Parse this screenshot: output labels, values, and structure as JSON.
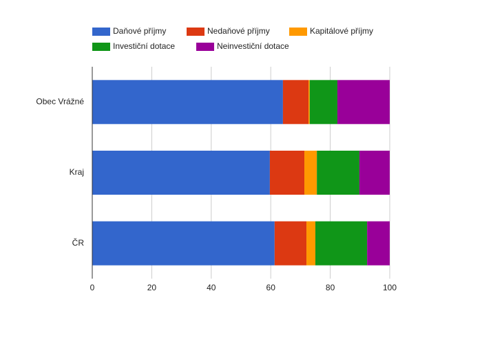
{
  "chart_data": {
    "type": "stacked-bar-horizontal",
    "categories": [
      "Obec Vrážné",
      "Kraj",
      "ČR"
    ],
    "series": [
      {
        "name": "Daňové příjmy",
        "color": "#3366cc",
        "values": [
          64.1,
          59.7,
          61.3
        ]
      },
      {
        "name": "Nedaňové příjmy",
        "color": "#dc3912",
        "values": [
          8.6,
          11.6,
          10.7
        ]
      },
      {
        "name": "Kapitálové příjmy",
        "color": "#ff9900",
        "values": [
          0.4,
          4.2,
          3.0
        ]
      },
      {
        "name": "Investiční dotace",
        "color": "#109618",
        "values": [
          9.3,
          14.3,
          17.4
        ]
      },
      {
        "name": "Neinvestiční dotace",
        "color": "#990099",
        "values": [
          17.6,
          10.2,
          7.6
        ]
      }
    ],
    "xlim": [
      0,
      100
    ],
    "xticks": [
      0,
      20,
      40,
      60,
      80,
      100
    ],
    "grid": true,
    "legend": "top"
  }
}
